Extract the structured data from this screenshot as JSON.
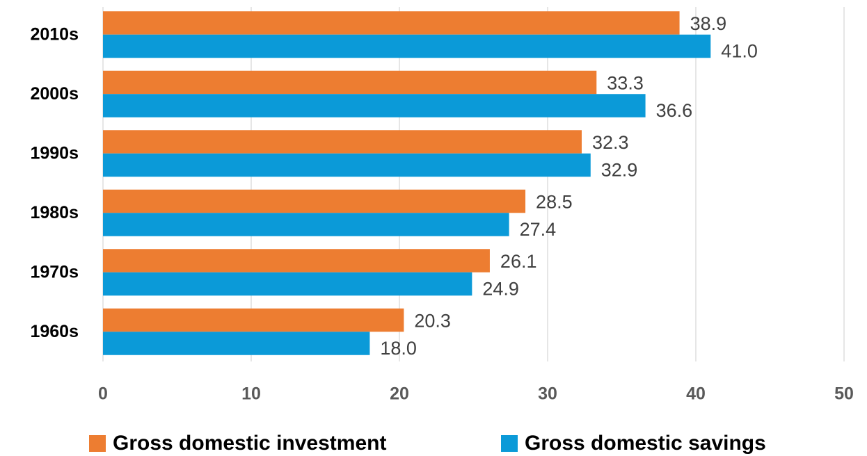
{
  "chart_data": {
    "type": "hbar",
    "categories": [
      "2010s",
      "2000s",
      "1990s",
      "1980s",
      "1970s",
      "1960s"
    ],
    "series": [
      {
        "name": "Gross domestic investment",
        "color": "#ed7d31",
        "values": [
          38.9,
          33.3,
          32.3,
          28.5,
          26.1,
          20.3
        ],
        "value_labels": [
          "38.9",
          "33.3",
          "32.3",
          "28.5",
          "26.1",
          "20.3"
        ]
      },
      {
        "name": "Gross domestic savings",
        "color": "#0b9ad8",
        "values": [
          41.0,
          36.6,
          32.9,
          27.4,
          24.9,
          18.0
        ],
        "value_labels": [
          "41.0",
          "36.6",
          "32.9",
          "27.4",
          "24.9",
          "18.0"
        ]
      }
    ],
    "xlim": [
      0,
      50
    ],
    "xticks": [
      0,
      10,
      20,
      30,
      40,
      50
    ],
    "grid": true,
    "legend": "bottom"
  }
}
